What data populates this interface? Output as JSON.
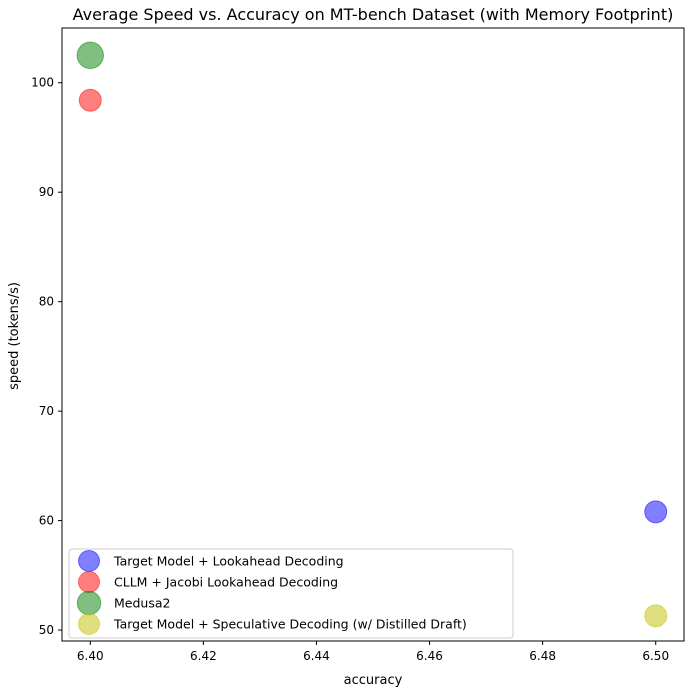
{
  "chart_data": {
    "type": "scatter",
    "title": "Average Speed vs. Accuracy on MT-bench Dataset (with Memory Footprint)",
    "xlabel": "accuracy",
    "ylabel": "speed (tokens/s)",
    "xlim": [
      6.395,
      6.505
    ],
    "ylim": [
      49.0,
      105.0
    ],
    "xticks": [
      "6.40",
      "6.42",
      "6.44",
      "6.46",
      "6.48",
      "6.50"
    ],
    "yticks": [
      "50",
      "60",
      "70",
      "80",
      "90",
      "100"
    ],
    "grid": false,
    "legend_position": "lower-left",
    "series": [
      {
        "name": "Target Model + Lookahead Decoding",
        "color": "#0000ff",
        "points": [
          {
            "x": 6.5,
            "y": 60.8,
            "size": 1.0
          }
        ]
      },
      {
        "name": "CLLM + Jacobi Lookahead Decoding",
        "color": "#ff0000",
        "points": [
          {
            "x": 6.4,
            "y": 98.4,
            "size": 1.0
          }
        ]
      },
      {
        "name": "Medusa2",
        "color": "#008000",
        "points": [
          {
            "x": 6.4,
            "y": 102.5,
            "size": 1.2
          }
        ]
      },
      {
        "name": "Target Model + Speculative Decoding (w/ Distilled Draft)",
        "color": "#bfbf00",
        "points": [
          {
            "x": 6.5,
            "y": 51.3,
            "size": 1.0
          }
        ]
      }
    ]
  }
}
